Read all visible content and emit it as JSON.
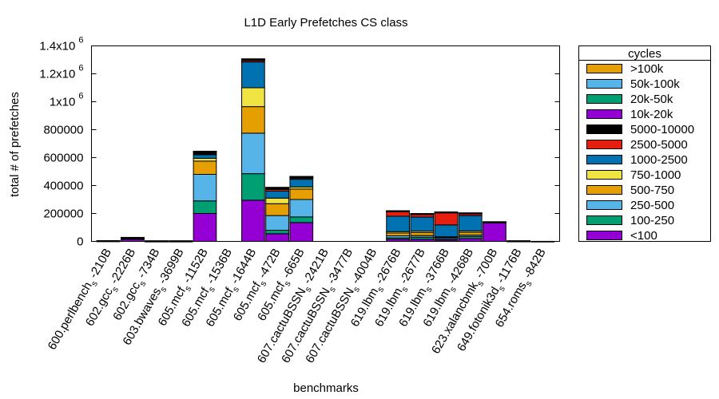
{
  "chart_data": {
    "type": "bar",
    "stacked": true,
    "title": "L1D Early Prefetches CS class",
    "xlabel": "benchmarks",
    "ylabel": "total # of prefetches",
    "ylim": [
      0,
      1400000
    ],
    "yticks": [
      {
        "value": 0,
        "base": "0",
        "exp": ""
      },
      {
        "value": 200000,
        "base": "200000",
        "exp": ""
      },
      {
        "value": 400000,
        "base": "400000",
        "exp": ""
      },
      {
        "value": 600000,
        "base": "600000",
        "exp": ""
      },
      {
        "value": 800000,
        "base": "800000",
        "exp": ""
      },
      {
        "value": 1000000,
        "base": "1x10",
        "exp": "6"
      },
      {
        "value": 1200000,
        "base": "1.2x10",
        "exp": "6"
      },
      {
        "value": 1400000,
        "base": "1.4x10",
        "exp": "6"
      }
    ],
    "categories": [
      {
        "base": "600.perlbench",
        "sub": "s",
        "rest": "-210B"
      },
      {
        "base": "602.gcc",
        "sub": "s",
        "rest": "-2226B"
      },
      {
        "base": "602.gcc",
        "sub": "s",
        "rest": "-734B"
      },
      {
        "base": "603.bwaves",
        "sub": "s",
        "rest": "-3699B"
      },
      {
        "base": "605.mcf",
        "sub": "s",
        "rest": "-1152B"
      },
      {
        "base": "605.mcf",
        "sub": "s",
        "rest": "-1536B"
      },
      {
        "base": "605.mcf",
        "sub": "s",
        "rest": "-1644B"
      },
      {
        "base": "605.mcf",
        "sub": "s",
        "rest": "-472B"
      },
      {
        "base": "605.mcf",
        "sub": "s",
        "rest": "-665B"
      },
      {
        "base": "607.cactuBSSN",
        "sub": "s",
        "rest": "-2421B"
      },
      {
        "base": "607.cactuBSSN",
        "sub": "s",
        "rest": "-3477B"
      },
      {
        "base": "607.cactuBSSN",
        "sub": "s",
        "rest": "-4004B"
      },
      {
        "base": "619.lbm",
        "sub": "s",
        "rest": "-2676B"
      },
      {
        "base": "619.lbm",
        "sub": "s",
        "rest": "-2677B"
      },
      {
        "base": "619.lbm",
        "sub": "s",
        "rest": "-3766B"
      },
      {
        "base": "619.lbm",
        "sub": "s",
        "rest": "-4268B"
      },
      {
        "base": "623.xalancbmk",
        "sub": "s",
        "rest": "-700B"
      },
      {
        "base": "649.fotonik3d",
        "sub": "s",
        "rest": "-1176B"
      },
      {
        "base": "654.roms",
        "sub": "s",
        "rest": "-842B"
      }
    ],
    "legend_title": "cycles",
    "legend_position": "right",
    "series": [
      {
        "name": "<100",
        "color": "#9400d3",
        "values": [
          3000,
          15000,
          1000,
          1000,
          200000,
          0,
          295000,
          55000,
          135000,
          0,
          0,
          0,
          15000,
          15000,
          10000,
          20000,
          135000,
          1500,
          500
        ]
      },
      {
        "name": "100-250",
        "color": "#009e73",
        "values": [
          500,
          3000,
          500,
          500,
          90000,
          0,
          190000,
          25000,
          40000,
          0,
          0,
          0,
          10000,
          15000,
          5000,
          15000,
          2000,
          500,
          0
        ]
      },
      {
        "name": "250-500",
        "color": "#56b4e9",
        "values": [
          500,
          3000,
          500,
          500,
          190000,
          0,
          290000,
          105000,
          125000,
          0,
          0,
          0,
          15000,
          12000,
          10000,
          10000,
          1000,
          500,
          0
        ]
      },
      {
        "name": "500-750",
        "color": "#e69f00",
        "values": [
          500,
          2000,
          500,
          500,
          95000,
          0,
          190000,
          85000,
          75000,
          0,
          0,
          0,
          20000,
          22000,
          5000,
          20000,
          1000,
          500,
          0
        ]
      },
      {
        "name": "750-1000",
        "color": "#f0e442",
        "values": [
          300,
          1000,
          300,
          300,
          20000,
          0,
          135000,
          40000,
          15000,
          0,
          0,
          0,
          10000,
          10000,
          3000,
          10000,
          500,
          200,
          0
        ]
      },
      {
        "name": "1000-2500",
        "color": "#0072b2",
        "values": [
          500,
          3000,
          500,
          500,
          25000,
          0,
          185000,
          50000,
          55000,
          0,
          0,
          0,
          110000,
          100000,
          85000,
          110000,
          500,
          500,
          0
        ]
      },
      {
        "name": "2500-5000",
        "color": "#e51e10",
        "values": [
          200,
          1000,
          200,
          200,
          5000,
          0,
          10000,
          12000,
          8000,
          0,
          0,
          0,
          35000,
          20000,
          90000,
          15000,
          200,
          100,
          0
        ]
      },
      {
        "name": "5000-10000",
        "color": "#000000",
        "values": [
          100,
          500,
          100,
          100,
          12000,
          0,
          5000,
          8000,
          5000,
          0,
          0,
          0,
          2000,
          3000,
          1000,
          2000,
          300,
          100,
          0
        ]
      },
      {
        "name": "10k-20k",
        "color": "#9400d3",
        "values": [
          100,
          500,
          100,
          100,
          5000,
          0,
          5000,
          5000,
          5000,
          0,
          0,
          0,
          1000,
          1000,
          500,
          1000,
          200,
          0,
          0
        ]
      },
      {
        "name": "20k-50k",
        "color": "#009e73",
        "values": [
          0,
          0,
          0,
          0,
          2000,
          0,
          1000,
          1000,
          1000,
          0,
          0,
          0,
          500,
          500,
          200,
          500,
          0,
          0,
          0
        ]
      },
      {
        "name": "50k-100k",
        "color": "#56b4e9",
        "values": [
          0,
          0,
          0,
          0,
          1000,
          0,
          500,
          500,
          500,
          0,
          0,
          0,
          200,
          200,
          100,
          200,
          0,
          0,
          0
        ]
      },
      {
        "name": ">100k",
        "color": "#e69f00",
        "values": [
          0,
          0,
          0,
          0,
          1000,
          0,
          500,
          500,
          500,
          0,
          0,
          0,
          200,
          200,
          100,
          200,
          0,
          0,
          0
        ]
      }
    ]
  }
}
